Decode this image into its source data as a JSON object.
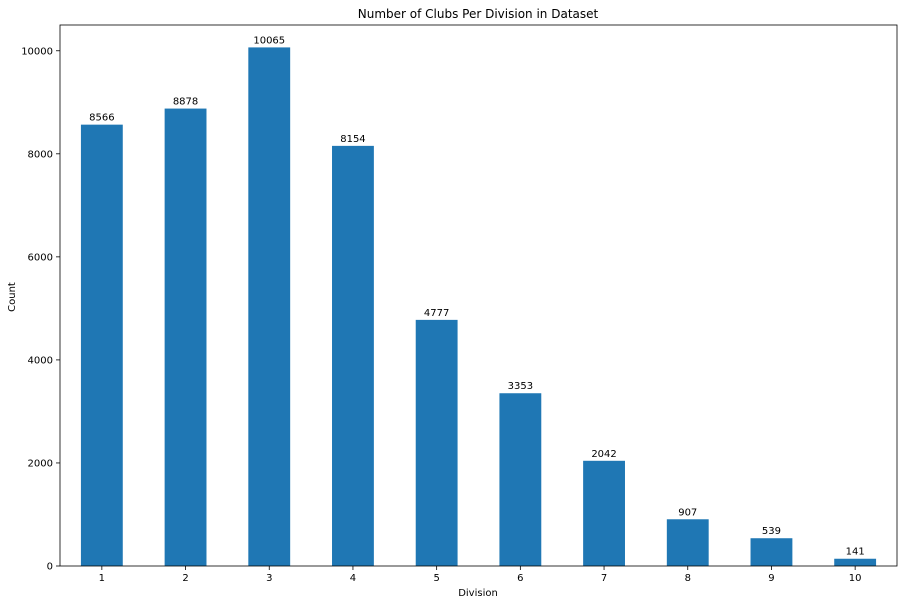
{
  "chart_data": {
    "type": "bar",
    "title": "Number of Clubs Per Division in Dataset",
    "xlabel": "Division",
    "ylabel": "Count",
    "categories": [
      "1",
      "2",
      "3",
      "4",
      "5",
      "6",
      "7",
      "8",
      "9",
      "10"
    ],
    "values": [
      8566,
      8878,
      10065,
      8154,
      4777,
      3353,
      2042,
      907,
      539,
      141
    ],
    "data_labels": [
      "8566",
      "8878",
      "10065",
      "8154",
      "4777",
      "3353",
      "2042",
      "907",
      "539",
      "141"
    ],
    "ylim": [
      0,
      10500
    ],
    "yticks": [
      0,
      2000,
      4000,
      6000,
      8000,
      10000
    ],
    "ytick_labels": [
      "0",
      "2000",
      "4000",
      "6000",
      "8000",
      "10000"
    ],
    "bar_color": "#1f77b4",
    "grid": false,
    "legend": "none"
  }
}
